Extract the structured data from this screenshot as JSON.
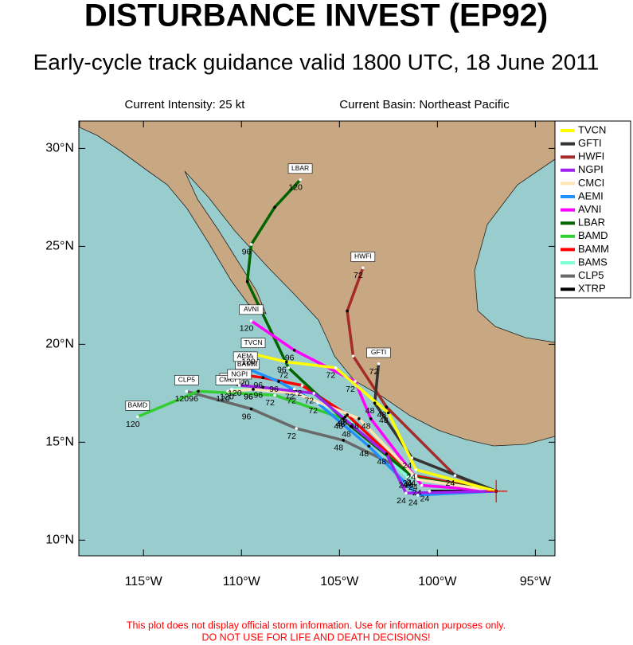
{
  "chart_data": {
    "type": "track-map",
    "title": "DISTURBANCE INVEST (EP92)",
    "subtitle": "Early-cycle track guidance valid 1800 UTC, 18 June 2011",
    "info_left": "Current Intensity: 25 kt",
    "info_right": "Current Basin: Northeast Pacific",
    "footer": [
      "This plot does not display official storm information. Use for information purposes only.",
      "DO NOT USE FOR LIFE AND DEATH DECISIONS!"
    ],
    "xlim": [
      -118.3,
      -94.0
    ],
    "ylim": [
      9.2,
      31.4
    ],
    "xticks": [
      {
        "value": -115,
        "label": "115°W"
      },
      {
        "value": -110,
        "label": "110°W"
      },
      {
        "value": -105,
        "label": "105°W"
      },
      {
        "value": -100,
        "label": "100°W"
      },
      {
        "value": -95,
        "label": "95°W"
      }
    ],
    "yticks": [
      {
        "value": 10,
        "label": "10°N"
      },
      {
        "value": 15,
        "label": "15°N"
      },
      {
        "value": 20,
        "label": "20°N"
      },
      {
        "value": 25,
        "label": "25°N"
      },
      {
        "value": 30,
        "label": "30°N"
      }
    ],
    "legend": "right",
    "series": [
      {
        "name": "TVCN",
        "color": "#ffff00",
        "x": [
          -97.0,
          -101.1,
          -102.5,
          -105.2,
          -107.7,
          -109.4
        ],
        "values": [
          12.5,
          13.6,
          16.5,
          18.8,
          19.1,
          19.5
        ],
        "labels": [
          null,
          24,
          48,
          72,
          96,
          120
        ]
      },
      {
        "name": "GFTI",
        "color": "#333333",
        "x": [
          -97.0,
          -101.3,
          -103.2,
          -103.0
        ],
        "values": [
          12.5,
          14.2,
          17.0,
          19.0
        ],
        "labels": [
          null,
          24,
          48,
          72
        ]
      },
      {
        "name": "HWFI",
        "color": "#a52a2a",
        "x": [
          -97.0,
          -99.1,
          -102.6,
          -104.3,
          -104.6,
          -103.8
        ],
        "values": [
          12.5,
          13.3,
          16.8,
          19.4,
          21.7,
          23.9
        ],
        "labels": [
          null,
          24,
          48,
          null,
          null,
          72
        ]
      },
      {
        "name": "NGPI",
        "color": "#a020f0",
        "x": [
          -97.0,
          -101.6,
          -102.6,
          -106.3,
          -108.9,
          -110.1
        ],
        "values": [
          12.5,
          12.4,
          14.4,
          17.5,
          17.8,
          17.9
        ],
        "labels": [
          null,
          24,
          48,
          72,
          96,
          120
        ]
      },
      {
        "name": "CMCI",
        "color": "#ffe4b5",
        "x": [
          -97.0,
          -101.0,
          -104.0,
          -107.2,
          -109.4,
          -110.7
        ],
        "values": [
          12.5,
          13.1,
          16.2,
          17.5,
          17.7,
          17.6
        ],
        "labels": [
          null,
          24,
          48,
          72,
          96,
          120
        ]
      },
      {
        "name": "AEMI",
        "color": "#1e90ff",
        "x": [
          -97.0,
          -101.0,
          -103.5,
          -106.1,
          -108.1,
          -109.8
        ],
        "values": [
          12.5,
          12.3,
          14.8,
          17.0,
          18.1,
          18.8
        ],
        "labels": [
          null,
          24,
          48,
          72,
          96,
          120
        ]
      },
      {
        "name": "AVNI",
        "color": "#ff00ff",
        "x": [
          -97.0,
          -100.8,
          -103.4,
          -104.2,
          -107.3,
          -109.5
        ],
        "values": [
          12.5,
          12.8,
          16.2,
          18.1,
          19.7,
          21.2
        ],
        "labels": [
          null,
          24,
          48,
          72,
          96,
          120
        ]
      },
      {
        "name": "LBAR",
        "color": "#006400",
        "x": [
          -97.0,
          -101.2,
          -104.4,
          -107.6,
          -109.7,
          -109.5,
          -108.3,
          -107.0
        ],
        "values": [
          12.5,
          13.2,
          15.8,
          18.8,
          23.2,
          25.1,
          27.0,
          28.4
        ],
        "labels": [
          null,
          24,
          48,
          72,
          null,
          96,
          null,
          120
        ]
      },
      {
        "name": "BAMD",
        "color": "#32cd32",
        "x": [
          -97.0,
          -101.2,
          -104.8,
          -108.3,
          -112.2,
          -115.3
        ],
        "values": [
          12.5,
          13.2,
          16.2,
          17.4,
          17.6,
          16.3
        ],
        "labels": [
          null,
          24,
          48,
          72,
          96,
          120
        ]
      },
      {
        "name": "BAMM",
        "color": "#ff0000",
        "x": [
          -97.0,
          -101.3,
          -104.6,
          -106.9,
          -108.9,
          -109.7
        ],
        "values": [
          12.5,
          13.3,
          16.4,
          17.9,
          18.3,
          18.4
        ],
        "labels": [
          null,
          24,
          48,
          72,
          96,
          120
        ]
      },
      {
        "name": "BAMS",
        "color": "#7fffd4",
        "x": [
          -97.0,
          -101.5,
          -104.7,
          -107.3,
          -109.4,
          -110.5
        ],
        "values": [
          12.5,
          13.2,
          16.3,
          17.7,
          17.7,
          17.7
        ],
        "labels": [
          null,
          24,
          48,
          72,
          96,
          120
        ]
      },
      {
        "name": "CLP5",
        "color": "#696969",
        "x": [
          -97.0,
          -101.1,
          -104.8,
          -107.2,
          -109.5,
          -112.8
        ],
        "values": [
          12.5,
          13.3,
          15.1,
          15.7,
          16.7,
          17.6
        ],
        "labels": [
          null,
          24,
          48,
          72,
          96,
          120
        ]
      },
      {
        "name": "XTRP",
        "color": "#000000",
        "x": [
          -97.0,
          -100.4
        ],
        "values": [
          12.5,
          12.5
        ],
        "labels": [
          null,
          24
        ],
        "end_tag": false
      }
    ]
  }
}
